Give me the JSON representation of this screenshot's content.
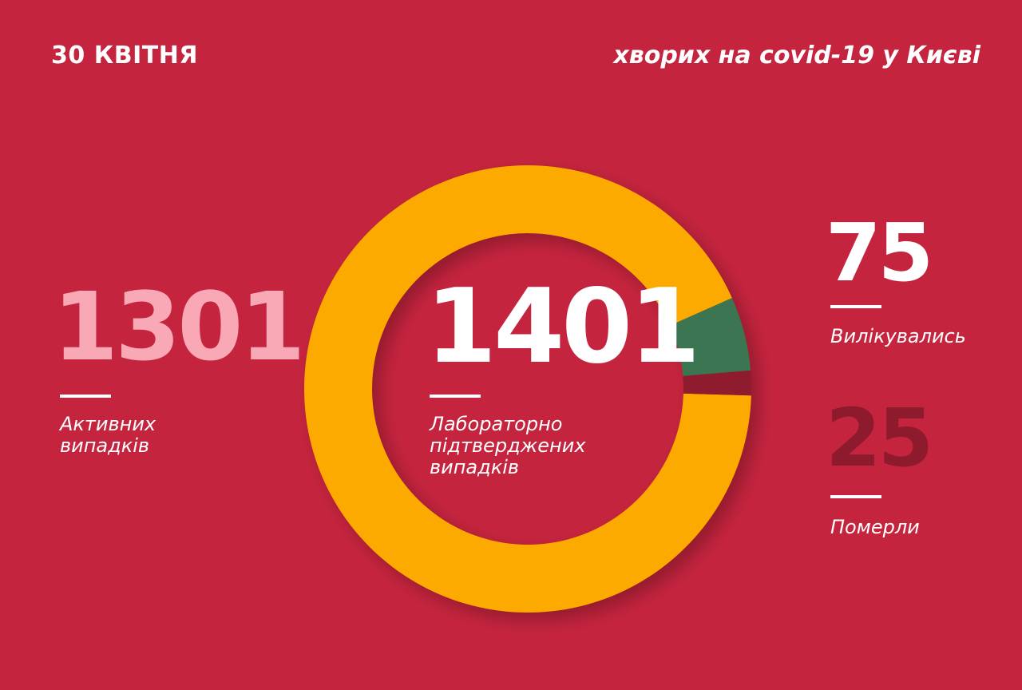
{
  "header": {
    "date": "30 КВІТНЯ",
    "subtitle": "хворих на covid-19 у Києві"
  },
  "colors": {
    "background": "#C5243E",
    "confirmed": "#FDAA00",
    "recovered": "#3A7551",
    "deaths": "#8E1A2D",
    "active": "#F9A9B5"
  },
  "chart_data": {
    "type": "pie",
    "variant": "donut",
    "total": {
      "value": "1401",
      "label": "Лабораторно підтверджених випадків"
    },
    "slices": [
      {
        "name": "Активних випадків",
        "value": 1301,
        "color": "#FDAA00"
      },
      {
        "name": "Вилікувались",
        "value": 75,
        "color": "#3A7551"
      },
      {
        "name": "Померли",
        "value": 25,
        "color": "#8E1A2D"
      }
    ]
  },
  "stats": {
    "active": {
      "value": "1301",
      "label_line1": "Активних",
      "label_line2": "випадків"
    },
    "total": {
      "value": "1401",
      "label_line1": "Лабораторно",
      "label_line2": "підтверджених",
      "label_line3": "випадків"
    },
    "recovered": {
      "value": "75",
      "label": "Вилікувались"
    },
    "deaths": {
      "value": "25",
      "label": "Померли"
    }
  }
}
